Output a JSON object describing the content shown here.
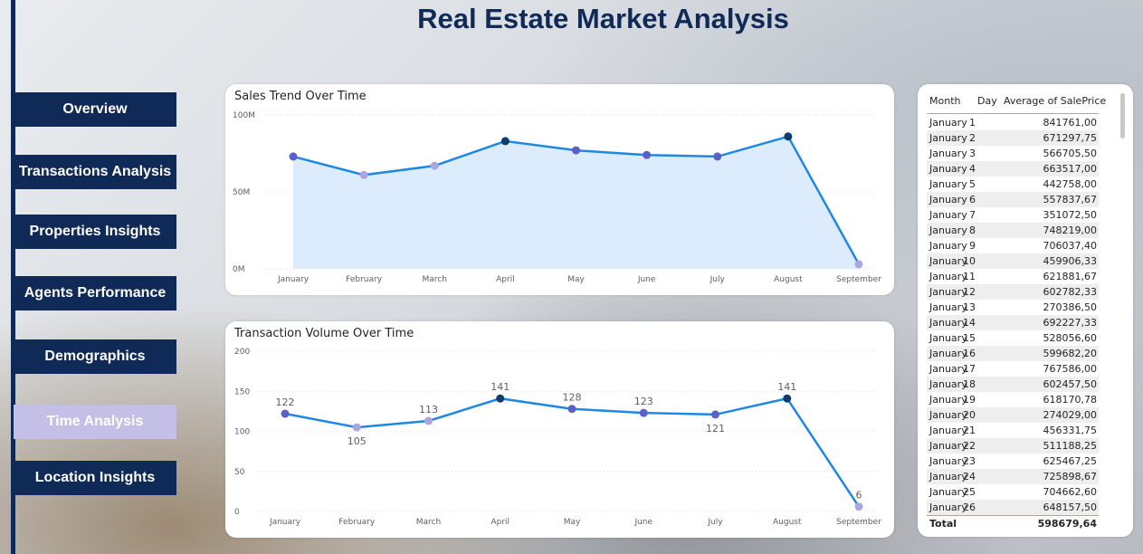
{
  "title": "Real Estate Market Analysis",
  "nav": [
    {
      "label": "Overview",
      "active": false
    },
    {
      "label": "Transactions Analysis",
      "active": false
    },
    {
      "label": "Properties Insights",
      "active": false
    },
    {
      "label": "Agents Performance",
      "active": false
    },
    {
      "label": "Demographics",
      "active": false
    },
    {
      "label": "Time Analysis",
      "active": true
    },
    {
      "label": "Location Insights",
      "active": false
    }
  ],
  "colors": {
    "navy": "#0f2a57",
    "line": "#1e88e5",
    "area": "#dcecfc",
    "point_dark": "#0f3b6e",
    "point_mid": "#5c5fc8",
    "point_light": "#a9a6e0"
  },
  "chart_data": [
    {
      "type": "area",
      "title": "Sales Trend Over Time",
      "categories": [
        "January",
        "February",
        "March",
        "April",
        "May",
        "June",
        "July",
        "August",
        "September"
      ],
      "values": [
        73,
        61,
        67,
        83,
        77,
        74,
        73,
        86,
        3
      ],
      "value_unit": "M",
      "ylim": [
        0,
        100
      ],
      "yticks": [
        "0M",
        "50M",
        "100M"
      ],
      "point_shades": [
        "mid",
        "light",
        "light",
        "dark",
        "mid",
        "mid",
        "mid",
        "dark",
        "light"
      ],
      "grid": true
    },
    {
      "type": "line",
      "title": "Transaction Volume Over Time",
      "categories": [
        "January",
        "February",
        "March",
        "April",
        "May",
        "June",
        "July",
        "August",
        "September"
      ],
      "values": [
        122,
        105,
        113,
        141,
        128,
        123,
        121,
        141,
        6
      ],
      "labels": [
        "122",
        "105",
        "113",
        "141",
        "128",
        "123",
        "121",
        "141",
        "6"
      ],
      "label_pos": [
        "above",
        "below",
        "above",
        "above",
        "above",
        "above",
        "below",
        "above",
        "above"
      ],
      "ylim": [
        0,
        200
      ],
      "yticks": [
        "0",
        "50",
        "100",
        "150",
        "200"
      ],
      "point_shades": [
        "mid",
        "light",
        "light",
        "dark",
        "mid",
        "mid",
        "mid",
        "dark",
        "light"
      ],
      "grid": true
    }
  ],
  "table": {
    "headers": {
      "month": "Month",
      "day": "Day",
      "avg": "Average of SalePrice"
    },
    "rows": [
      {
        "month": "January",
        "day": "1",
        "avg": "841761,00"
      },
      {
        "month": "January",
        "day": "2",
        "avg": "671297,75"
      },
      {
        "month": "January",
        "day": "3",
        "avg": "566705,50"
      },
      {
        "month": "January",
        "day": "4",
        "avg": "663517,00"
      },
      {
        "month": "January",
        "day": "5",
        "avg": "442758,00"
      },
      {
        "month": "January",
        "day": "6",
        "avg": "557837,67"
      },
      {
        "month": "January",
        "day": "7",
        "avg": "351072,50"
      },
      {
        "month": "January",
        "day": "8",
        "avg": "748219,00"
      },
      {
        "month": "January",
        "day": "9",
        "avg": "706037,40"
      },
      {
        "month": "January",
        "day": "10",
        "avg": "459906,33"
      },
      {
        "month": "January",
        "day": "11",
        "avg": "621881,67"
      },
      {
        "month": "January",
        "day": "12",
        "avg": "602782,33"
      },
      {
        "month": "January",
        "day": "13",
        "avg": "270386,50"
      },
      {
        "month": "January",
        "day": "14",
        "avg": "692227,33"
      },
      {
        "month": "January",
        "day": "15",
        "avg": "528056,60"
      },
      {
        "month": "January",
        "day": "16",
        "avg": "599682,20"
      },
      {
        "month": "January",
        "day": "17",
        "avg": "767586,00"
      },
      {
        "month": "January",
        "day": "18",
        "avg": "602457,50"
      },
      {
        "month": "January",
        "day": "19",
        "avg": "618170,78"
      },
      {
        "month": "January",
        "day": "20",
        "avg": "274029,00"
      },
      {
        "month": "January",
        "day": "21",
        "avg": "456331,75"
      },
      {
        "month": "January",
        "day": "22",
        "avg": "511188,25"
      },
      {
        "month": "January",
        "day": "23",
        "avg": "625467,25"
      },
      {
        "month": "January",
        "day": "24",
        "avg": "725898,67"
      },
      {
        "month": "January",
        "day": "25",
        "avg": "704662,60"
      },
      {
        "month": "January",
        "day": "26",
        "avg": "648157,50"
      }
    ],
    "total": {
      "label": "Total",
      "avg": "598679,64"
    }
  }
}
